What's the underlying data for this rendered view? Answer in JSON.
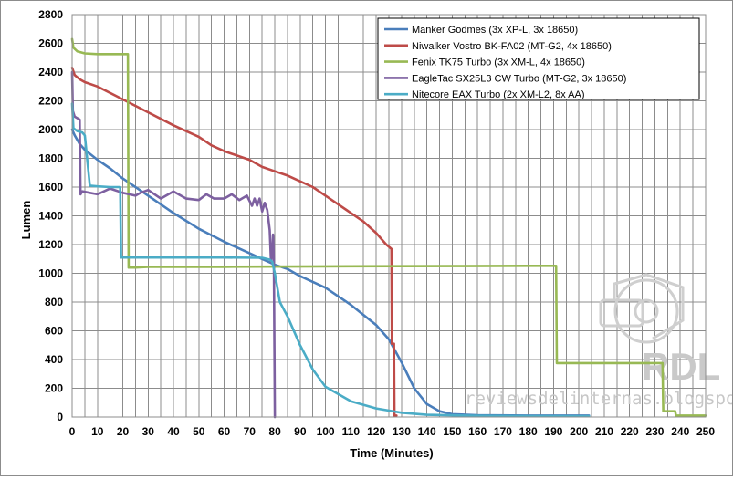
{
  "chart_data": {
    "type": "line",
    "title": "",
    "xlabel": "Time (Minutes)",
    "ylabel": "Lumen",
    "xlim": [
      0,
      250
    ],
    "ylim": [
      0,
      2800
    ],
    "xticks": [
      "0",
      "10",
      "20",
      "30",
      "40",
      "50",
      "60",
      "70",
      "80",
      "90",
      "100",
      "110",
      "120",
      "130",
      "140",
      "150",
      "160",
      "170",
      "180",
      "190",
      "200",
      "210",
      "220",
      "230",
      "240",
      "250"
    ],
    "yticks": [
      "0",
      "200",
      "400",
      "600",
      "800",
      "1000",
      "1200",
      "1400",
      "1600",
      "1800",
      "2000",
      "2200",
      "2400",
      "2600",
      "2800"
    ],
    "grid": true,
    "legend_position": "top-right",
    "watermark": "reviewsdelinternas.blogspot.com",
    "watermark_logo": "RDL",
    "series": [
      {
        "name": "Manker Godmes (3x XP-L, 3x 18650)",
        "color": "#4a7ebb",
        "points": [
          [
            0,
            2000
          ],
          [
            1,
            1960
          ],
          [
            3,
            1900
          ],
          [
            5,
            1860
          ],
          [
            10,
            1790
          ],
          [
            15,
            1730
          ],
          [
            20,
            1660
          ],
          [
            30,
            1540
          ],
          [
            40,
            1420
          ],
          [
            50,
            1310
          ],
          [
            60,
            1220
          ],
          [
            70,
            1140
          ],
          [
            75,
            1100
          ],
          [
            80,
            1060
          ],
          [
            85,
            1030
          ],
          [
            90,
            980
          ],
          [
            100,
            900
          ],
          [
            110,
            780
          ],
          [
            120,
            640
          ],
          [
            125,
            540
          ],
          [
            130,
            380
          ],
          [
            135,
            200
          ],
          [
            140,
            90
          ],
          [
            145,
            40
          ],
          [
            150,
            20
          ],
          [
            160,
            12
          ],
          [
            180,
            10
          ],
          [
            204,
            10
          ]
        ]
      },
      {
        "name": "Niwalker Vostro BK-FA02 (MT-G2, 4x 18650)",
        "color": "#be4b48",
        "points": [
          [
            0,
            2430
          ],
          [
            1,
            2380
          ],
          [
            3,
            2350
          ],
          [
            5,
            2330
          ],
          [
            10,
            2300
          ],
          [
            20,
            2210
          ],
          [
            30,
            2120
          ],
          [
            40,
            2030
          ],
          [
            50,
            1950
          ],
          [
            55,
            1890
          ],
          [
            60,
            1850
          ],
          [
            70,
            1790
          ],
          [
            75,
            1740
          ],
          [
            80,
            1710
          ],
          [
            85,
            1680
          ],
          [
            90,
            1640
          ],
          [
            95,
            1600
          ],
          [
            100,
            1540
          ],
          [
            105,
            1480
          ],
          [
            110,
            1420
          ],
          [
            115,
            1360
          ],
          [
            120,
            1280
          ],
          [
            124,
            1200
          ],
          [
            126,
            1170
          ],
          [
            126.2,
            510
          ],
          [
            127,
            510
          ],
          [
            127.2,
            10
          ],
          [
            128,
            10
          ]
        ]
      },
      {
        "name": "Fenix TK75 Turbo (3x XM-L, 4x 18650)",
        "color": "#98b954",
        "points": [
          [
            0,
            2630
          ],
          [
            0.5,
            2570
          ],
          [
            2,
            2545
          ],
          [
            5,
            2530
          ],
          [
            10,
            2525
          ],
          [
            20,
            2525
          ],
          [
            22,
            2525
          ],
          [
            22.3,
            1040
          ],
          [
            25,
            1040
          ],
          [
            30,
            1045
          ],
          [
            60,
            1045
          ],
          [
            100,
            1048
          ],
          [
            150,
            1050
          ],
          [
            180,
            1052
          ],
          [
            191,
            1052
          ],
          [
            191.3,
            375
          ],
          [
            200,
            375
          ],
          [
            210,
            375
          ],
          [
            225,
            375
          ],
          [
            233,
            375
          ],
          [
            233.3,
            40
          ],
          [
            238,
            40
          ],
          [
            238.3,
            10
          ],
          [
            250,
            10
          ]
        ]
      },
      {
        "name": "EagleTac SX25L3 CW Turbo (MT-G2, 3x 18650)",
        "color": "#7d60a0",
        "points": [
          [
            0,
            2400
          ],
          [
            0.3,
            2130
          ],
          [
            1,
            2090
          ],
          [
            3,
            2070
          ],
          [
            3.3,
            1550
          ],
          [
            4,
            1570
          ],
          [
            7,
            1560
          ],
          [
            10,
            1550
          ],
          [
            15,
            1590
          ],
          [
            20,
            1560
          ],
          [
            25,
            1540
          ],
          [
            27,
            1560
          ],
          [
            30,
            1580
          ],
          [
            35,
            1520
          ],
          [
            40,
            1570
          ],
          [
            45,
            1520
          ],
          [
            50,
            1510
          ],
          [
            53,
            1550
          ],
          [
            56,
            1520
          ],
          [
            60,
            1520
          ],
          [
            63,
            1550
          ],
          [
            66,
            1510
          ],
          [
            69,
            1540
          ],
          [
            71,
            1470
          ],
          [
            72,
            1520
          ],
          [
            73,
            1470
          ],
          [
            74,
            1520
          ],
          [
            75,
            1430
          ],
          [
            76,
            1490
          ],
          [
            77,
            1440
          ],
          [
            78,
            1300
          ],
          [
            78.5,
            1080
          ],
          [
            79,
            1150
          ],
          [
            79.3,
            1270
          ],
          [
            79.6,
            1100
          ],
          [
            80,
            0
          ]
        ]
      },
      {
        "name": "Nitecore EAX Turbo (2x XM-L2, 8x AA)",
        "color": "#4bacc6",
        "points": [
          [
            0,
            2180
          ],
          [
            0.5,
            2010
          ],
          [
            2,
            1990
          ],
          [
            4,
            1980
          ],
          [
            5,
            1960
          ],
          [
            7,
            1610
          ],
          [
            10,
            1605
          ],
          [
            15,
            1600
          ],
          [
            19,
            1600
          ],
          [
            19.3,
            1110
          ],
          [
            25,
            1110
          ],
          [
            40,
            1110
          ],
          [
            60,
            1110
          ],
          [
            75,
            1108
          ],
          [
            78,
            1095
          ],
          [
            79,
            1080
          ],
          [
            80,
            1000
          ],
          [
            82,
            800
          ],
          [
            85,
            700
          ],
          [
            90,
            500
          ],
          [
            95,
            330
          ],
          [
            100,
            210
          ],
          [
            110,
            110
          ],
          [
            120,
            60
          ],
          [
            130,
            30
          ],
          [
            140,
            15
          ],
          [
            160,
            8
          ],
          [
            180,
            6
          ],
          [
            204,
            5
          ]
        ]
      }
    ]
  }
}
